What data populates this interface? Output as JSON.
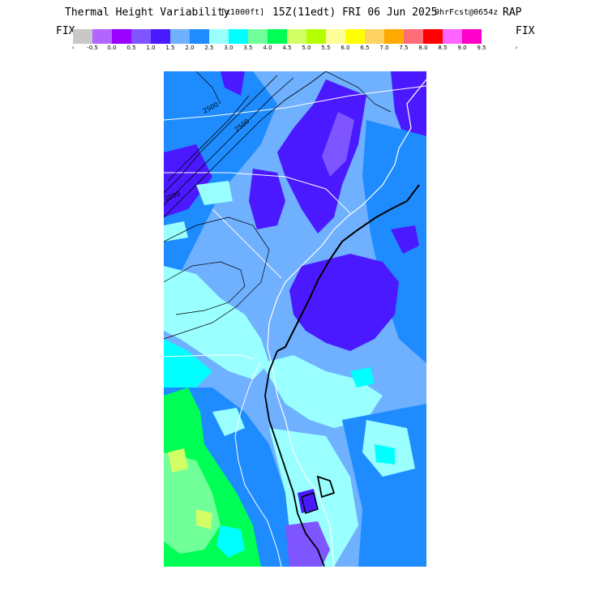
{
  "header": {
    "main_title": "Thermal Height Variability",
    "units": "[x1000ft]",
    "valid_time": "15Z(11edt) FRI 06 Jun 2025",
    "forecast": "9hrFcst@0654z",
    "model": "RAP"
  },
  "legend": {
    "fix_left": "FIX",
    "fix_right": "FIX",
    "arrow_left": "‹",
    "arrow_right": "›",
    "colors": [
      "#c8c8c8",
      "#b266ff",
      "#9900ff",
      "#7f55ff",
      "#4b19ff",
      "#6fb0ff",
      "#1e8cff",
      "#99ffff",
      "#00ffff",
      "#70ff99",
      "#00ff55",
      "#d2ff66",
      "#b4ff00",
      "#ffff9a",
      "#ffff00",
      "#ffd264",
      "#ffaa00",
      "#ff6e78",
      "#ff0000",
      "#ff64ff",
      "#ff00c8"
    ],
    "tick_labels": [
      "-0.5",
      "0.0",
      "0.5",
      "1.0",
      "1.5",
      "2.0",
      "2.5",
      "3.0",
      "3.5",
      "4.0",
      "4.5",
      "5.0",
      "5.5",
      "6.0",
      "6.5",
      "7.0",
      "7.5",
      "8.0",
      "8.5",
      "9.0",
      "9.5"
    ]
  },
  "map": {
    "contour_labels": [
      "2500",
      "2500",
      "2000"
    ]
  }
}
